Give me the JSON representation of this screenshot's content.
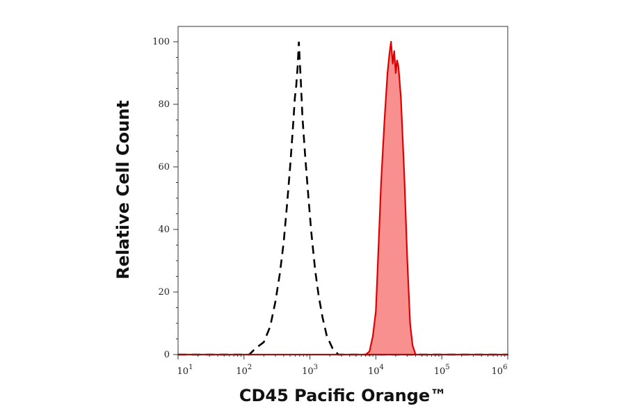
{
  "chart_data": {
    "type": "area",
    "xlabel": "CD45 Pacific Orange™",
    "ylabel": "Relative Cell Count",
    "x_scale": "log",
    "xlim": [
      10,
      1000000
    ],
    "ylim": [
      0,
      100
    ],
    "x_ticks": [
      {
        "value": 10,
        "base": "10",
        "exp": "1"
      },
      {
        "value": 100,
        "base": "10",
        "exp": "2"
      },
      {
        "value": 1000,
        "base": "10",
        "exp": "3"
      },
      {
        "value": 10000,
        "base": "10",
        "exp": "4"
      },
      {
        "value": 100000,
        "base": "10",
        "exp": "5"
      },
      {
        "value": 1000000,
        "base": "10",
        "exp": "6"
      }
    ],
    "y_ticks": [
      {
        "value": 0,
        "label": "0"
      },
      {
        "value": 20,
        "label": "20"
      },
      {
        "value": 40,
        "label": "40"
      },
      {
        "value": 60,
        "label": "60"
      },
      {
        "value": 80,
        "label": "80"
      },
      {
        "value": 100,
        "label": "100"
      }
    ],
    "grid": false,
    "series": [
      {
        "style": "dashed-line",
        "color": "#000000",
        "points": [
          [
            10,
            0
          ],
          [
            120,
            0
          ],
          [
            150,
            2
          ],
          [
            200,
            4
          ],
          [
            250,
            9
          ],
          [
            300,
            17
          ],
          [
            350,
            26
          ],
          [
            400,
            36
          ],
          [
            450,
            48
          ],
          [
            500,
            60
          ],
          [
            550,
            72
          ],
          [
            590,
            82
          ],
          [
            620,
            86
          ],
          [
            650,
            92
          ],
          [
            680,
            100
          ],
          [
            700,
            94
          ],
          [
            730,
            87
          ],
          [
            770,
            76
          ],
          [
            850,
            63
          ],
          [
            950,
            50
          ],
          [
            1050,
            39
          ],
          [
            1200,
            27
          ],
          [
            1350,
            19
          ],
          [
            1550,
            12
          ],
          [
            1800,
            6
          ],
          [
            2200,
            2
          ],
          [
            2700,
            0
          ],
          [
            1000000,
            0
          ]
        ]
      },
      {
        "style": "filled-area",
        "color": "#e00000",
        "fill": "#f99090",
        "points": [
          [
            10,
            0
          ],
          [
            7000,
            0
          ],
          [
            8000,
            1
          ],
          [
            9000,
            6
          ],
          [
            10000,
            14
          ],
          [
            11000,
            35
          ],
          [
            12000,
            55
          ],
          [
            13500,
            75
          ],
          [
            15000,
            90
          ],
          [
            16000,
            96
          ],
          [
            17000,
            100
          ],
          [
            18000,
            93
          ],
          [
            19000,
            97
          ],
          [
            20000,
            90
          ],
          [
            21000,
            94
          ],
          [
            22000,
            92
          ],
          [
            24000,
            82
          ],
          [
            27000,
            57
          ],
          [
            30000,
            30
          ],
          [
            33000,
            10
          ],
          [
            36000,
            3
          ],
          [
            40000,
            0
          ],
          [
            1000000,
            0
          ]
        ]
      }
    ]
  }
}
